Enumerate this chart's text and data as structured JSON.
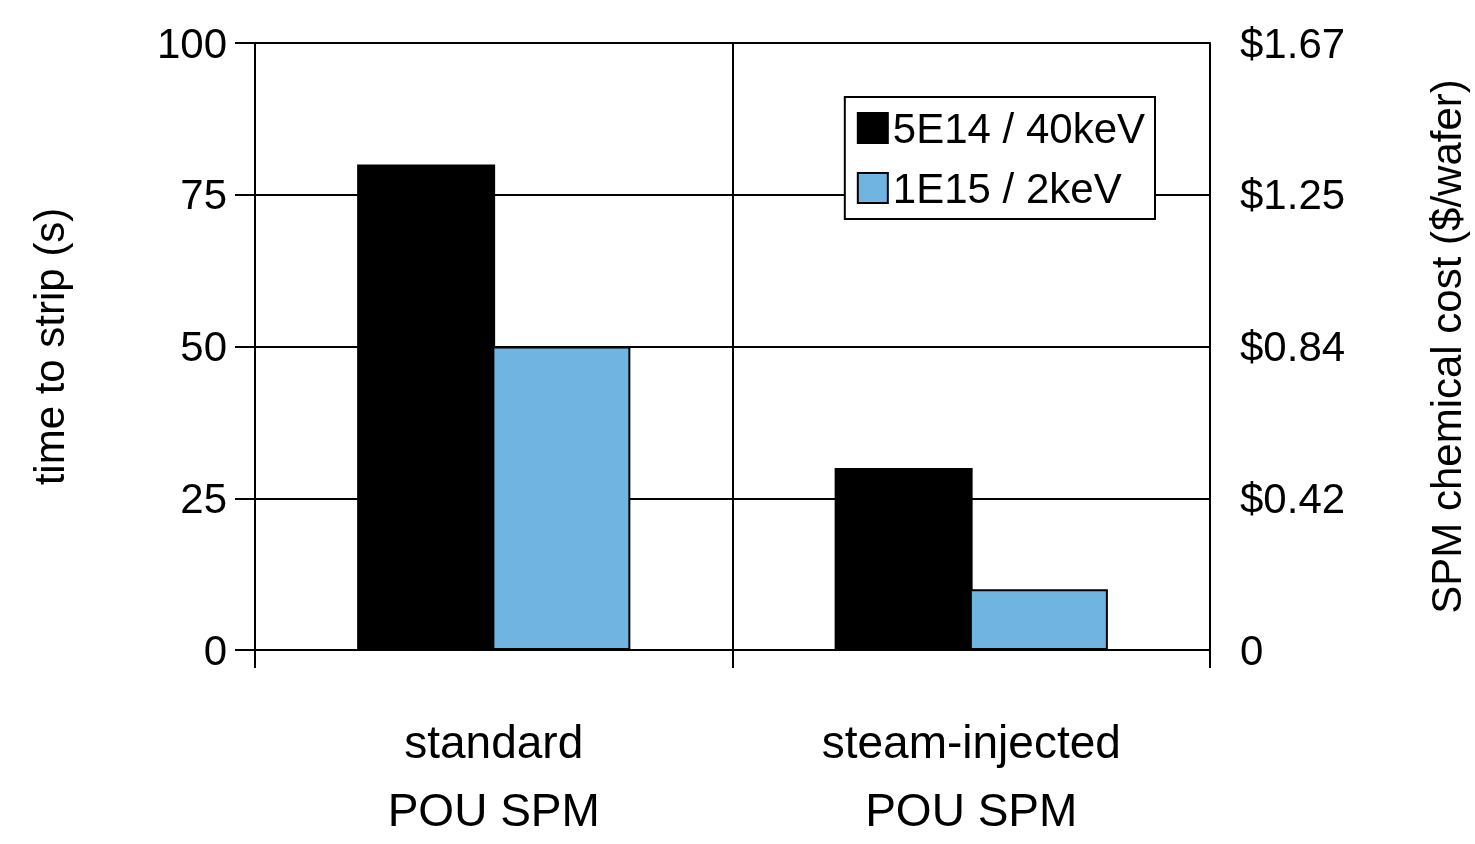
{
  "chart_data": {
    "type": "bar",
    "ylabel": "time to strip (s)",
    "y2label": "SPM chemical cost ($/wafer)",
    "categories": [
      "standard\nPOU SPM",
      "steam-injected\nPOU SPM"
    ],
    "series": [
      {
        "name": "5E14 / 40keV",
        "color": "#000000",
        "values": [
          80,
          30
        ]
      },
      {
        "name": "1E15 / 2keV",
        "color": "#70b4e2",
        "values": [
          50,
          10
        ]
      }
    ],
    "ylim": [
      0,
      100
    ],
    "yticks": [
      0,
      25,
      50,
      75,
      100
    ],
    "y2lim": [
      0,
      1.67
    ],
    "y2ticks": [
      0,
      {
        "value": 0.4175,
        "label": "$0.42"
      },
      {
        "value": 0.835,
        "label": "$0.84"
      },
      {
        "value": 1.2525,
        "label": "$1.25"
      },
      {
        "value": 1.67,
        "label": "$1.67"
      }
    ],
    "grid": true,
    "legend": "top right"
  }
}
